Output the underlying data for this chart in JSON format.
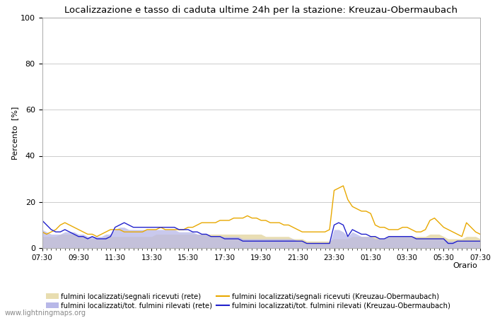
{
  "title": "Localizzazione e tasso di caduta ultime 24h per la stazione: Kreuzau-Obermaubach",
  "ylabel": "Percento  [%]",
  "xlabel": "Orario",
  "ylim": [
    0,
    100
  ],
  "yticks": [
    0,
    20,
    40,
    60,
    80,
    100
  ],
  "x_labels": [
    "07:30",
    "09:30",
    "11:30",
    "13:30",
    "15:30",
    "17:30",
    "19:30",
    "21:30",
    "23:30",
    "01:30",
    "03:30",
    "05:30",
    "07:30"
  ],
  "watermark": "www.lightningmaps.org",
  "fill_rete_color": "#e8ddb0",
  "fill_rete_alpha": 0.95,
  "fill_tot_color": "#b8b8e8",
  "fill_tot_alpha": 0.75,
  "line_orange_color": "#e8a800",
  "line_blue_color": "#2020cc",
  "legend_labels": [
    "fulmini localizzati/segnali ricevuti (rete)",
    "fulmini localizzati/segnali ricevuti (Kreuzau-Obermaubach)",
    "fulmini localizzati/tot. fulmini rilevati (rete)",
    "fulmini localizzati/tot. fulmini rilevati (Kreuzau-Obermaubach)"
  ],
  "n_points": 97,
  "orange_line": [
    7,
    6,
    7,
    8,
    10,
    11,
    10,
    9,
    8,
    7,
    6,
    6,
    5,
    6,
    7,
    8,
    8,
    8,
    7,
    7,
    7,
    7,
    7,
    8,
    8,
    8,
    9,
    8,
    8,
    8,
    8,
    8,
    9,
    9,
    10,
    11,
    11,
    11,
    11,
    12,
    12,
    12,
    13,
    13,
    13,
    14,
    13,
    13,
    12,
    12,
    11,
    11,
    11,
    10,
    10,
    9,
    8,
    7,
    7,
    7,
    7,
    7,
    7,
    8,
    25,
    26,
    27,
    21,
    18,
    17,
    16,
    16,
    15,
    10,
    9,
    9,
    8,
    8,
    8,
    9,
    9,
    8,
    7,
    7,
    8,
    12,
    13,
    11,
    9,
    8,
    7,
    6,
    5,
    11,
    9,
    7,
    6
  ],
  "blue_line": [
    12,
    10,
    8,
    7,
    7,
    8,
    7,
    6,
    5,
    5,
    4,
    5,
    4,
    4,
    4,
    5,
    9,
    10,
    11,
    10,
    9,
    9,
    9,
    9,
    9,
    9,
    9,
    9,
    9,
    9,
    8,
    8,
    8,
    7,
    7,
    6,
    6,
    5,
    5,
    5,
    4,
    4,
    4,
    4,
    3,
    3,
    3,
    3,
    3,
    3,
    3,
    3,
    3,
    3,
    3,
    3,
    3,
    3,
    2,
    2,
    2,
    2,
    2,
    2,
    10,
    11,
    10,
    5,
    8,
    7,
    6,
    6,
    5,
    5,
    4,
    4,
    5,
    5,
    5,
    5,
    5,
    5,
    4,
    4,
    4,
    4,
    4,
    4,
    4,
    2,
    2,
    3,
    3,
    3,
    3,
    3,
    3
  ],
  "fill_rete": [
    5,
    5,
    5,
    5,
    6,
    6,
    6,
    6,
    5,
    5,
    4,
    4,
    4,
    4,
    5,
    5,
    5,
    5,
    5,
    5,
    5,
    5,
    5,
    5,
    5,
    6,
    6,
    6,
    6,
    6,
    6,
    6,
    6,
    6,
    6,
    6,
    6,
    6,
    6,
    6,
    6,
    6,
    6,
    6,
    6,
    6,
    6,
    6,
    6,
    5,
    5,
    5,
    5,
    5,
    5,
    4,
    4,
    4,
    3,
    3,
    3,
    3,
    3,
    3,
    4,
    4,
    4,
    4,
    5,
    5,
    5,
    5,
    5,
    5,
    4,
    4,
    5,
    5,
    5,
    5,
    5,
    5,
    5,
    5,
    5,
    6,
    6,
    6,
    5,
    4,
    4,
    4,
    4,
    5,
    5,
    5,
    4
  ],
  "fill_tot": [
    8,
    7,
    6,
    6,
    6,
    7,
    7,
    7,
    6,
    6,
    5,
    5,
    5,
    5,
    6,
    6,
    8,
    9,
    9,
    8,
    8,
    8,
    8,
    8,
    8,
    8,
    8,
    8,
    8,
    8,
    7,
    7,
    7,
    7,
    6,
    6,
    6,
    5,
    5,
    5,
    5,
    5,
    5,
    5,
    4,
    4,
    4,
    4,
    4,
    4,
    4,
    4,
    4,
    4,
    4,
    4,
    3,
    3,
    2,
    2,
    2,
    2,
    2,
    2,
    8,
    8,
    7,
    5,
    7,
    6,
    5,
    5,
    5,
    4,
    4,
    4,
    5,
    5,
    5,
    5,
    5,
    5,
    4,
    4,
    4,
    4,
    4,
    4,
    4,
    3,
    3,
    3,
    3,
    3,
    3,
    3,
    3
  ]
}
